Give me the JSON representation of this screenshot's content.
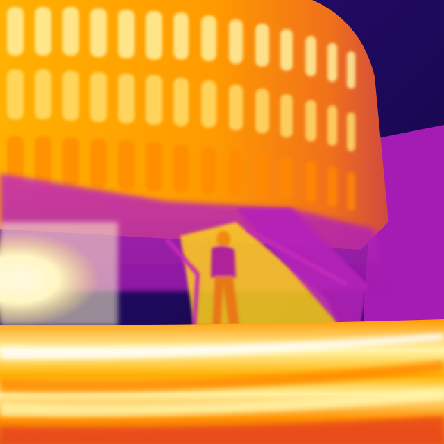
{
  "image": {
    "kind": "thermal-photo",
    "palette": [
      "#1a0a5a",
      "#3a0f8c",
      "#8a18b8",
      "#c42ab8",
      "#e8461e",
      "#ff9a00",
      "#ffd21a",
      "#fff4a8",
      "#ffffff"
    ],
    "subjects": [
      "building-facade",
      "stairs",
      "person",
      "pavement"
    ]
  }
}
